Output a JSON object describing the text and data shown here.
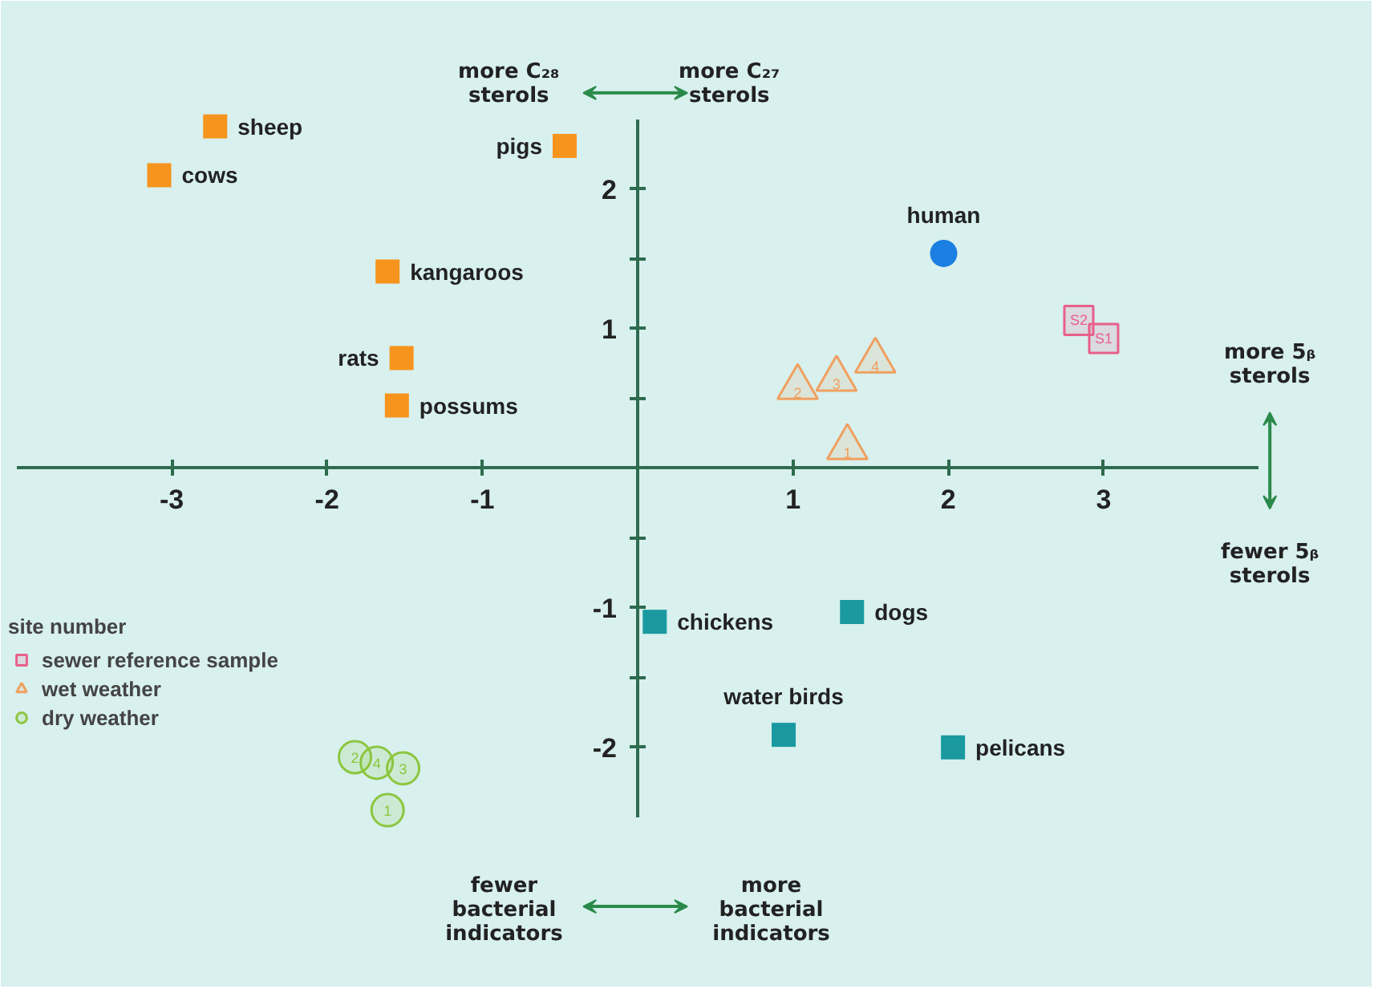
{
  "chart_data": {
    "type": "scatter",
    "legend_title": "site number",
    "legend": "left",
    "grid": false,
    "xlim": [
      -4,
      4
    ],
    "ylim": [
      -2.5,
      2.5
    ],
    "xticks": [
      -3,
      -2,
      -1,
      1,
      2,
      3
    ],
    "yticks": [
      -2,
      {
        "value": -1.5,
        "label": null
      },
      -1,
      {
        "value": -0.5,
        "label": null
      },
      {
        "value": 0.5,
        "label": null
      },
      1,
      {
        "value": 1.5,
        "label": null
      },
      2
    ],
    "annotations": [
      "more C₂₈\nsterols",
      "more C₂₇\nsterols",
      "more 5ᵦ\nsterols",
      "fewer 5ᵦ\nsterols",
      "fewer\nbacterial\nindicators",
      "more\nbacterial\nindicators",
      {
        "text": "sheep",
        "x": -2.72,
        "y": 2.45
      },
      {
        "text": "cows",
        "x": -3.08,
        "y": 2.1
      },
      {
        "text": "pigs",
        "x": -0.47,
        "y": 2.31
      },
      {
        "text": "kangaroos",
        "x": -1.61,
        "y": 1.41
      },
      {
        "text": "rats",
        "x": -1.52,
        "y": 0.79
      },
      {
        "text": "possums",
        "x": -1.55,
        "y": 0.45
      },
      {
        "text": "human",
        "x": 1.97,
        "y": 1.54
      },
      {
        "text": "S2",
        "x": 2.84,
        "y": 1.06
      },
      {
        "text": "S1",
        "x": 3.0,
        "y": 0.93
      },
      {
        "text": "2",
        "x": 1.03,
        "y": 0.58
      },
      {
        "text": "3",
        "x": 1.28,
        "y": 0.64
      },
      {
        "text": "4",
        "x": 1.53,
        "y": 0.77
      },
      {
        "text": "1",
        "x": 1.35,
        "y": 0.15
      },
      {
        "text": "2",
        "x": -1.82,
        "y": -2.07
      },
      {
        "text": "4",
        "x": -1.68,
        "y": -2.11
      },
      {
        "text": "3",
        "x": -1.51,
        "y": -2.15
      },
      {
        "text": "1",
        "x": -1.61,
        "y": -2.45
      },
      {
        "text": "chickens",
        "x": 0.11,
        "y": -1.1
      },
      {
        "text": "dogs",
        "x": 1.38,
        "y": -1.03
      },
      {
        "text": "water birds",
        "x": 0.94,
        "y": -1.91
      },
      {
        "text": "pelicans",
        "x": 2.03,
        "y": -2.0
      }
    ],
    "series": [
      {
        "color": "#f7941d",
        "marker": "square",
        "x": [
          -2.72,
          -3.08,
          -0.47,
          -1.61,
          -1.52,
          -1.55
        ],
        "values": [
          2.45,
          2.1,
          2.31,
          1.41,
          0.79,
          0.45
        ]
      },
      {
        "color": "#1a7fe0",
        "marker": "circle",
        "x": [
          1.97
        ],
        "values": [
          1.54
        ]
      },
      {
        "name": "sewer reference sample",
        "color": "#e8608a",
        "marker": "square",
        "x": [
          2.84,
          3.0
        ],
        "values": [
          1.06,
          0.93
        ]
      },
      {
        "name": "wet weather",
        "color": "#f0a060",
        "marker": "triangle",
        "x": [
          1.03,
          1.28,
          1.53,
          1.35
        ],
        "values": [
          0.58,
          0.64,
          0.77,
          0.15
        ]
      },
      {
        "name": "dry weather",
        "color": "#8cc63f",
        "marker": "circle",
        "x": [
          -1.82,
          -1.68,
          -1.51,
          -1.61
        ],
        "values": [
          -2.07,
          -2.11,
          -2.15,
          -2.45
        ]
      },
      {
        "color": "#1a9aa0",
        "marker": "square",
        "x": [
          0.11,
          1.38,
          0.94,
          2.03
        ],
        "values": [
          -1.1,
          -1.03,
          -1.91,
          -2.0
        ]
      }
    ]
  }
}
